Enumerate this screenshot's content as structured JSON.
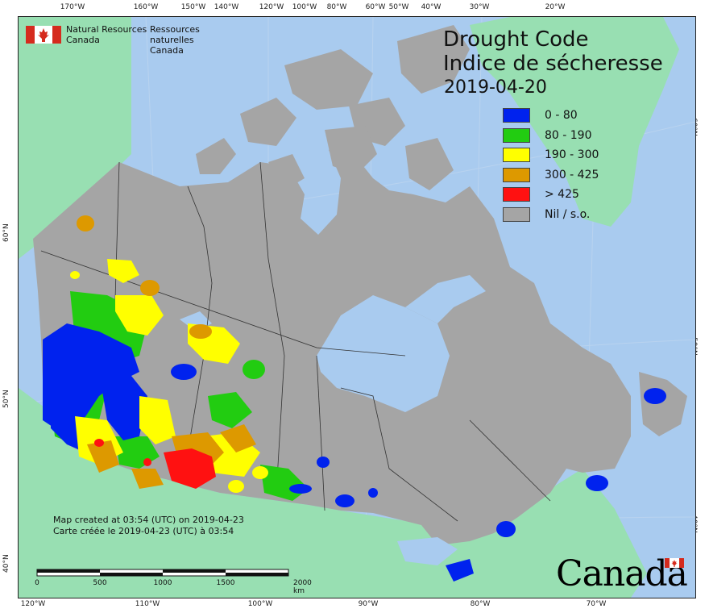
{
  "map": {
    "title_line1": "Drought Code",
    "title_line2": "Indice de sécheresse",
    "date": "2019-04-20",
    "colors": {
      "ocean": "#a9cbef",
      "land_outside": "#98dfb2",
      "canada_nil": "#a5a5a5",
      "boundary": "#333333"
    }
  },
  "legend": {
    "items": [
      {
        "label": "0 - 80",
        "color": "#0022ee"
      },
      {
        "label": "80 - 190",
        "color": "#22cc11"
      },
      {
        "label": "190 - 300",
        "color": "#ffff00"
      },
      {
        "label": "300 - 425",
        "color": "#dd9900"
      },
      {
        "label": "> 425",
        "color": "#ff1111"
      },
      {
        "label": "Nil / s.o.",
        "color": "#a5a5a5"
      }
    ]
  },
  "org": {
    "en_line1": "Natural Resources",
    "en_line2": "Canada",
    "fr_line1": "Ressources naturelles",
    "fr_line2": "Canada"
  },
  "footer": {
    "created_en": "Map created at 03:54 (UTC) on 2019-04-23",
    "created_fr": "Carte créée le 2019-04-23 (UTC) à 03:54",
    "wordmark": "Canada"
  },
  "scale": {
    "labels": [
      "0",
      "500",
      "1000",
      "1500",
      "2000 km"
    ]
  },
  "graticule": {
    "top": [
      "170°W",
      "160°W",
      "150°W",
      "140°W",
      "120°W",
      "100°W",
      "80°W",
      "60°W",
      "50°W",
      "40°W",
      "30°W",
      "20°W"
    ],
    "bottom": [
      "120°W",
      "110°W",
      "100°W",
      "90°W",
      "80°W",
      "70°W"
    ],
    "left": [
      "60°N",
      "50°N",
      "40°N"
    ],
    "right": [
      "60°N",
      "50°N",
      "40°N"
    ]
  }
}
